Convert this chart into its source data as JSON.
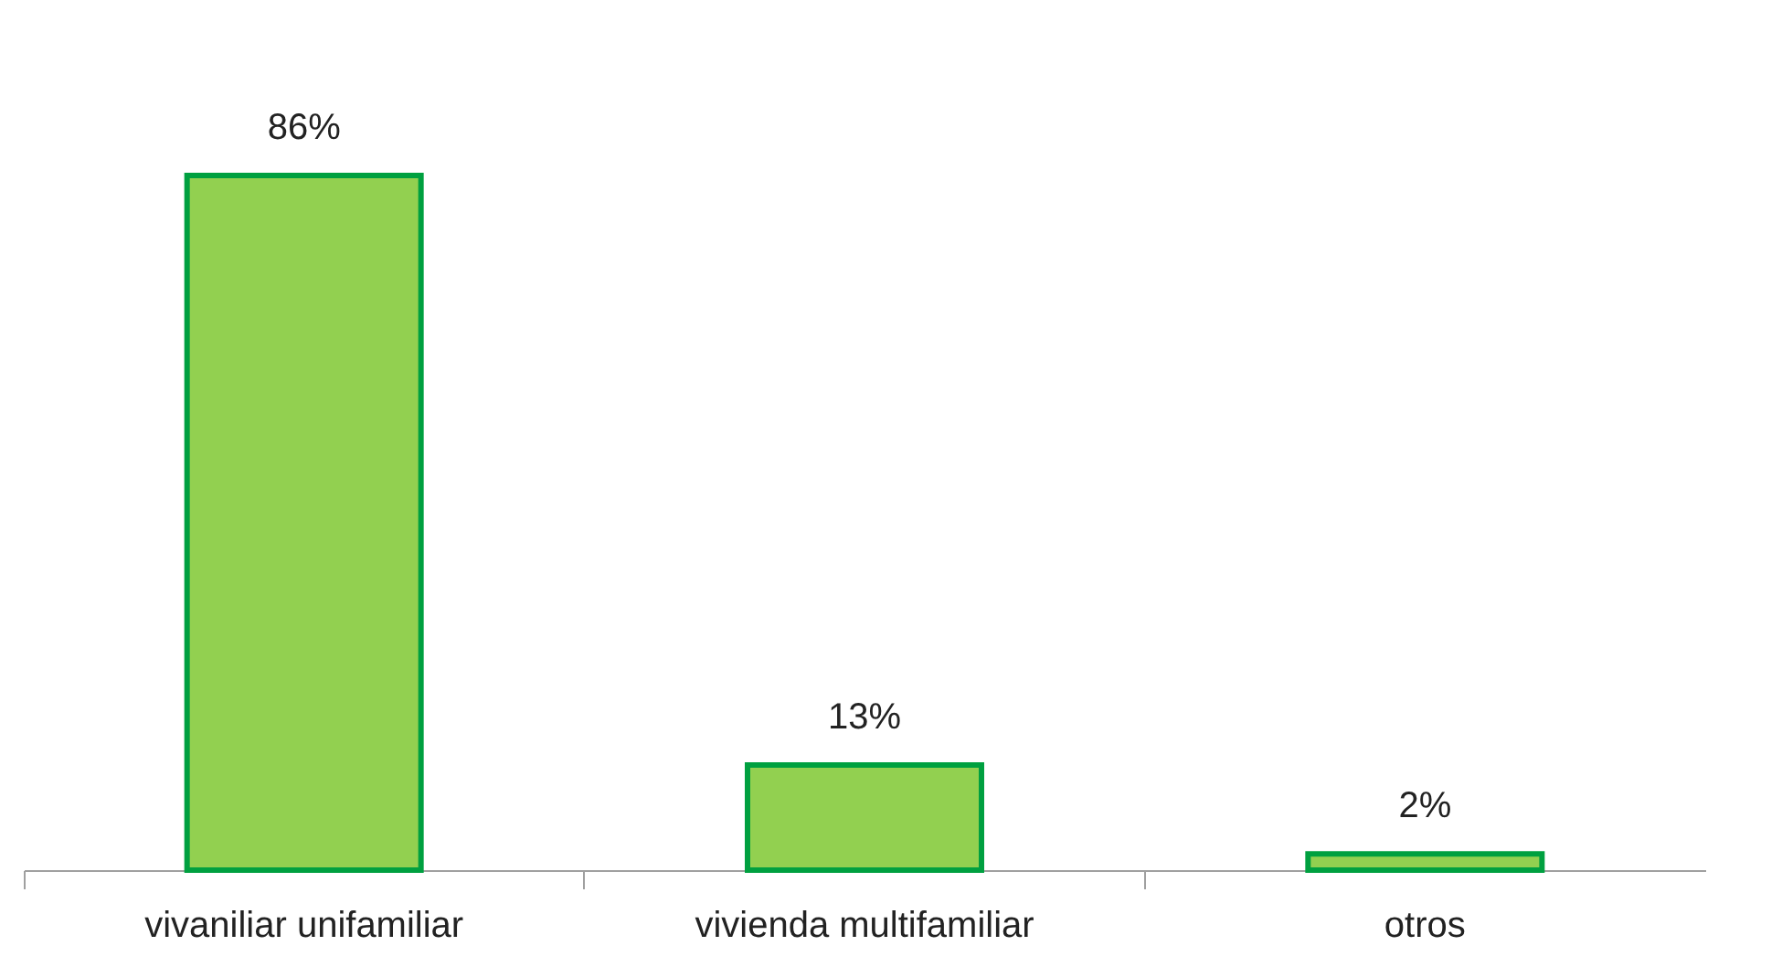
{
  "chart_data": {
    "type": "bar",
    "categories": [
      "vivaniliar unifamiliar",
      "vivienda multifamiliar",
      "otros"
    ],
    "values": [
      86,
      13,
      2
    ],
    "color": "#92d050",
    "data_labels": true,
    "value_labels": [
      "86%",
      "13%",
      "2%"
    ],
    "grid": false
  }
}
